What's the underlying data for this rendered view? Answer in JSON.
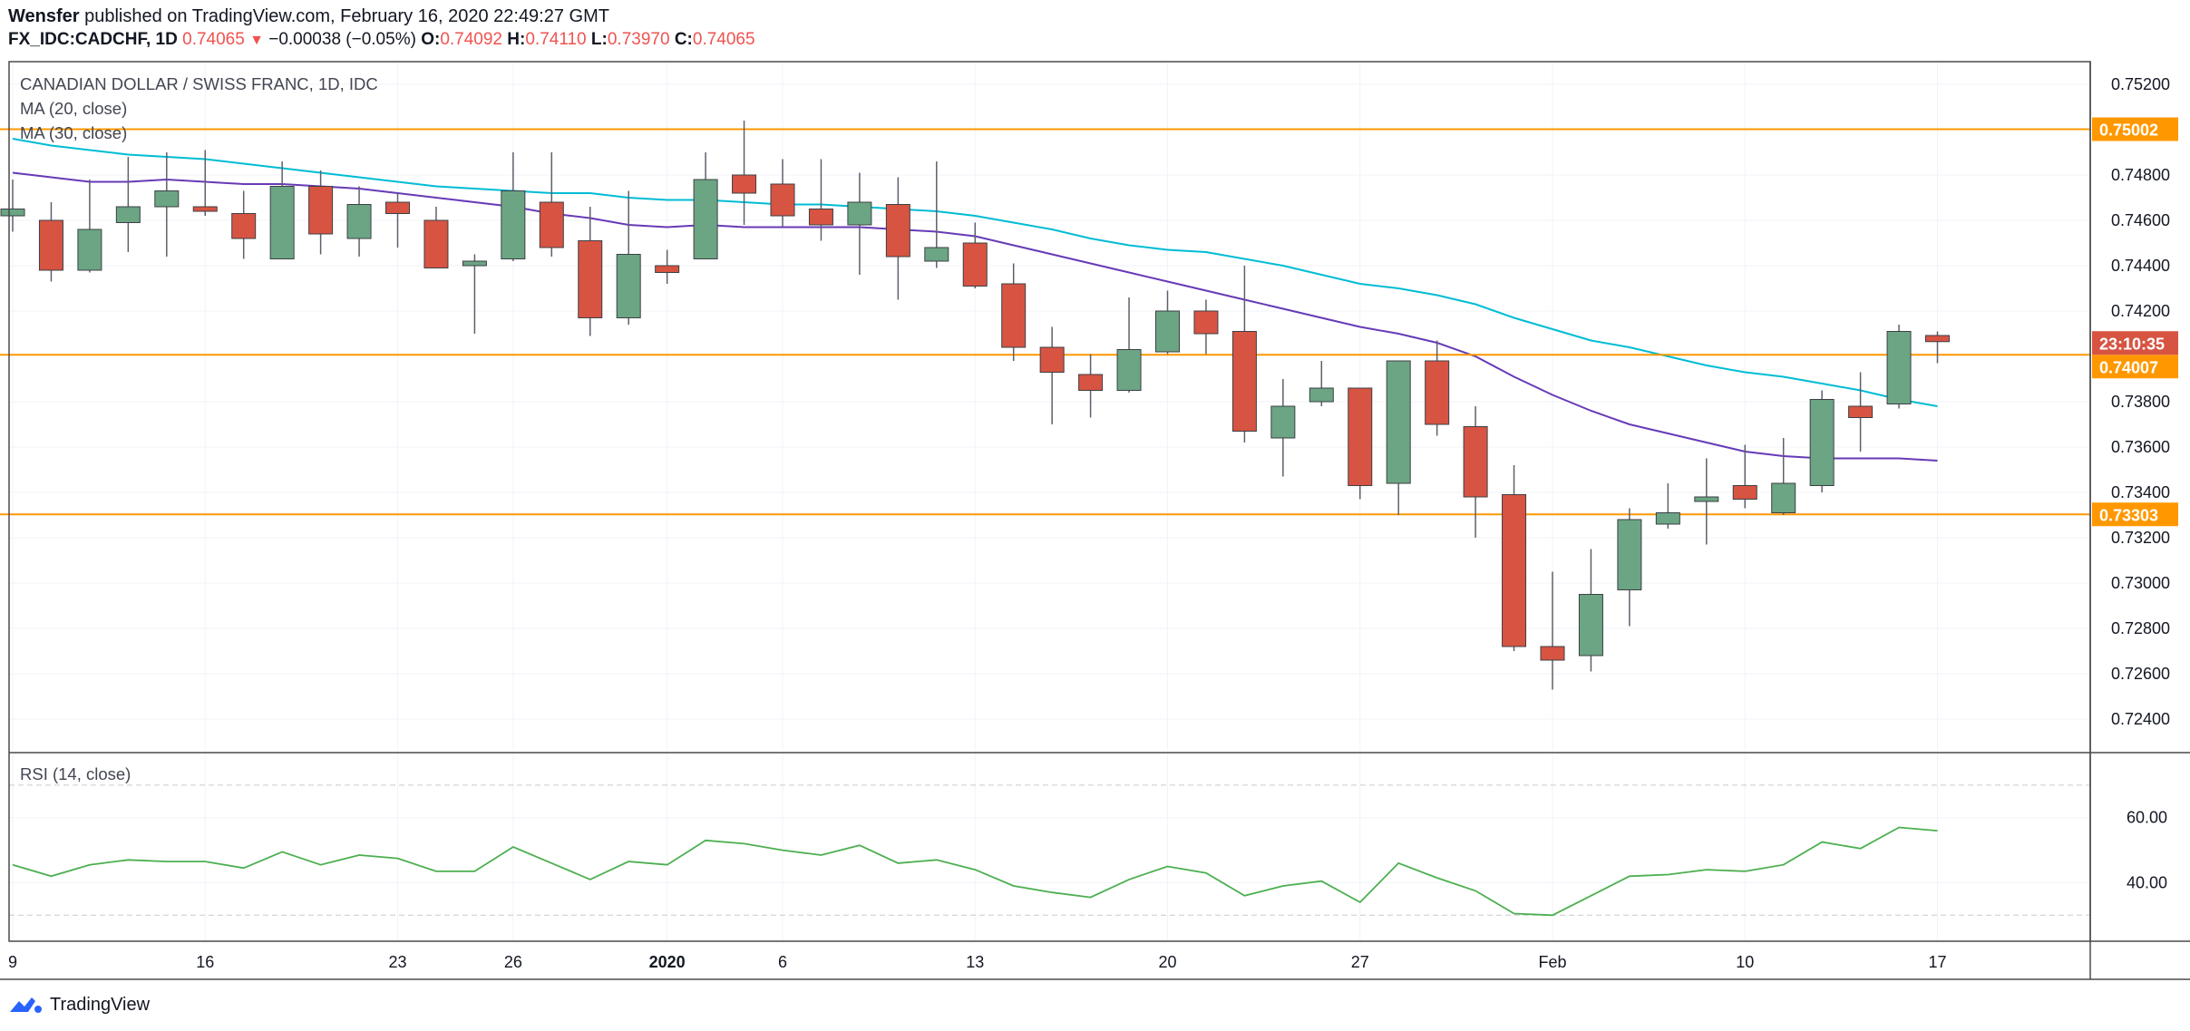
{
  "header": {
    "author": "Wensfer",
    "published_text": "published on TradingView.com, February 16, 2020 22:49:27 GMT",
    "symbol": "FX_IDC:CADCHF, 1D",
    "last": "0.74065",
    "change_arrow": "▼",
    "change": "−0.00038 (−0.05%)",
    "o_label": "O:",
    "o_value": "0.74092",
    "h_label": "H:",
    "h_value": "0.74110",
    "l_label": "L:",
    "l_value": "0.73970",
    "c_label": "C:",
    "c_value": "0.74065"
  },
  "legend": {
    "title": "CANADIAN DOLLAR / SWISS FRANC, 1D, IDC",
    "ma20": "MA (20, close)",
    "ma30": "MA (30, close)",
    "rsi": "RSI (14, close)"
  },
  "footer": {
    "brand": "TradingView"
  },
  "colors": {
    "up": "#6ba583",
    "down": "#d75442",
    "wick": "#5d606b",
    "ma20": "#00bcd4",
    "ma30": "#673ab7",
    "rsi": "#4caf50",
    "hline": "#ff9800",
    "grid": "#f0f3fa"
  },
  "chart_data": {
    "type": "candlestick",
    "title": "CANADIAN DOLLAR / SWISS FRANC, 1D, IDC",
    "ylim": [
      0.7226,
      0.753
    ],
    "price_ticks": [
      "0.75200",
      "0.74800",
      "0.74600",
      "0.74400",
      "0.74200",
      "0.73800",
      "0.73600",
      "0.73400",
      "0.73200",
      "0.73000",
      "0.72800",
      "0.72600",
      "0.72400"
    ],
    "x_ticks": [
      {
        "i": 0,
        "label": "9"
      },
      {
        "i": 5,
        "label": "16"
      },
      {
        "i": 10,
        "label": "23"
      },
      {
        "i": 13,
        "label": "26"
      },
      {
        "i": 17,
        "label": "2020"
      },
      {
        "i": 20,
        "label": "6"
      },
      {
        "i": 25,
        "label": "13"
      },
      {
        "i": 30,
        "label": "20"
      },
      {
        "i": 35,
        "label": "27"
      },
      {
        "i": 40,
        "label": "Feb"
      },
      {
        "i": 45,
        "label": "10"
      },
      {
        "i": 50,
        "label": "17"
      }
    ],
    "horizontal_lines": [
      {
        "price": 0.75002,
        "label": "0.75002"
      },
      {
        "price": 0.74007,
        "label": "0.74007"
      },
      {
        "price": 0.73303,
        "label": "0.73303"
      }
    ],
    "countdown": "23:10:35",
    "candles": [
      {
        "o": 0.7462,
        "h": 0.7478,
        "l": 0.7455,
        "c": 0.7465
      },
      {
        "o": 0.746,
        "h": 0.7468,
        "l": 0.7433,
        "c": 0.7438
      },
      {
        "o": 0.7438,
        "h": 0.7478,
        "l": 0.7437,
        "c": 0.7456
      },
      {
        "o": 0.7459,
        "h": 0.7488,
        "l": 0.7446,
        "c": 0.7466
      },
      {
        "o": 0.7466,
        "h": 0.749,
        "l": 0.7444,
        "c": 0.7473
      },
      {
        "o": 0.7466,
        "h": 0.7491,
        "l": 0.7462,
        "c": 0.7464
      },
      {
        "o": 0.7463,
        "h": 0.7473,
        "l": 0.7443,
        "c": 0.7452
      },
      {
        "o": 0.7443,
        "h": 0.7486,
        "l": 0.7443,
        "c": 0.7475
      },
      {
        "o": 0.7475,
        "h": 0.7482,
        "l": 0.7445,
        "c": 0.7454
      },
      {
        "o": 0.7452,
        "h": 0.7475,
        "l": 0.7444,
        "c": 0.7467
      },
      {
        "o": 0.7468,
        "h": 0.7472,
        "l": 0.7448,
        "c": 0.7463
      },
      {
        "o": 0.746,
        "h": 0.7466,
        "l": 0.744,
        "c": 0.7439
      },
      {
        "o": 0.744,
        "h": 0.7445,
        "l": 0.741,
        "c": 0.7442
      },
      {
        "o": 0.7443,
        "h": 0.749,
        "l": 0.7442,
        "c": 0.7473
      },
      {
        "o": 0.7468,
        "h": 0.749,
        "l": 0.7444,
        "c": 0.7448
      },
      {
        "o": 0.7451,
        "h": 0.7466,
        "l": 0.7409,
        "c": 0.7417
      },
      {
        "o": 0.7417,
        "h": 0.7473,
        "l": 0.7414,
        "c": 0.7445
      },
      {
        "o": 0.744,
        "h": 0.7447,
        "l": 0.7432,
        "c": 0.7437
      },
      {
        "o": 0.7443,
        "h": 0.749,
        "l": 0.7443,
        "c": 0.7478
      },
      {
        "o": 0.748,
        "h": 0.7504,
        "l": 0.7458,
        "c": 0.7472
      },
      {
        "o": 0.7476,
        "h": 0.7487,
        "l": 0.7457,
        "c": 0.7462
      },
      {
        "o": 0.7465,
        "h": 0.7487,
        "l": 0.7451,
        "c": 0.7458
      },
      {
        "o": 0.7458,
        "h": 0.7481,
        "l": 0.7436,
        "c": 0.7468
      },
      {
        "o": 0.7467,
        "h": 0.7479,
        "l": 0.7425,
        "c": 0.7444
      },
      {
        "o": 0.7442,
        "h": 0.7486,
        "l": 0.7439,
        "c": 0.7448
      },
      {
        "o": 0.745,
        "h": 0.7459,
        "l": 0.743,
        "c": 0.7431
      },
      {
        "o": 0.7432,
        "h": 0.7441,
        "l": 0.7398,
        "c": 0.7404
      },
      {
        "o": 0.7404,
        "h": 0.7413,
        "l": 0.737,
        "c": 0.7393
      },
      {
        "o": 0.7392,
        "h": 0.7401,
        "l": 0.7373,
        "c": 0.7385
      },
      {
        "o": 0.7385,
        "h": 0.7426,
        "l": 0.7384,
        "c": 0.7403
      },
      {
        "o": 0.7402,
        "h": 0.7429,
        "l": 0.7401,
        "c": 0.742
      },
      {
        "o": 0.742,
        "h": 0.7425,
        "l": 0.7401,
        "c": 0.741
      },
      {
        "o": 0.7411,
        "h": 0.744,
        "l": 0.7362,
        "c": 0.7367
      },
      {
        "o": 0.7364,
        "h": 0.739,
        "l": 0.7347,
        "c": 0.7378
      },
      {
        "o": 0.738,
        "h": 0.7398,
        "l": 0.7378,
        "c": 0.7386
      },
      {
        "o": 0.7386,
        "h": 0.7386,
        "l": 0.7337,
        "c": 0.7343
      },
      {
        "o": 0.7344,
        "h": 0.7398,
        "l": 0.733,
        "c": 0.7398
      },
      {
        "o": 0.7398,
        "h": 0.7407,
        "l": 0.7365,
        "c": 0.737
      },
      {
        "o": 0.7369,
        "h": 0.7378,
        "l": 0.732,
        "c": 0.7338
      },
      {
        "o": 0.7339,
        "h": 0.7352,
        "l": 0.727,
        "c": 0.7272
      },
      {
        "o": 0.7272,
        "h": 0.7305,
        "l": 0.7253,
        "c": 0.7266
      },
      {
        "o": 0.7268,
        "h": 0.7315,
        "l": 0.7261,
        "c": 0.7295
      },
      {
        "o": 0.7297,
        "h": 0.7333,
        "l": 0.7281,
        "c": 0.7328
      },
      {
        "o": 0.7326,
        "h": 0.7344,
        "l": 0.7324,
        "c": 0.7331
      },
      {
        "o": 0.7336,
        "h": 0.7355,
        "l": 0.7317,
        "c": 0.7338
      },
      {
        "o": 0.7343,
        "h": 0.7361,
        "l": 0.7333,
        "c": 0.7337
      },
      {
        "o": 0.7331,
        "h": 0.7364,
        "l": 0.733,
        "c": 0.7344
      },
      {
        "o": 0.7343,
        "h": 0.7385,
        "l": 0.734,
        "c": 0.7381
      },
      {
        "o": 0.7378,
        "h": 0.7393,
        "l": 0.7358,
        "c": 0.7373
      },
      {
        "o": 0.7379,
        "h": 0.7414,
        "l": 0.7377,
        "c": 0.7411
      },
      {
        "o": 0.74092,
        "h": 0.7411,
        "l": 0.7397,
        "c": 0.74065
      }
    ],
    "ma20": [
      0.7481,
      0.7479,
      0.7477,
      0.7477,
      0.7478,
      0.7477,
      0.7476,
      0.7476,
      0.7475,
      0.7474,
      0.7472,
      0.747,
      0.7468,
      0.7466,
      0.7463,
      0.7461,
      0.7458,
      0.7457,
      0.7458,
      0.7457,
      0.7457,
      0.7457,
      0.7457,
      0.7456,
      0.7455,
      0.7453,
      0.7449,
      0.7445,
      0.7441,
      0.7437,
      0.7433,
      0.7429,
      0.7425,
      0.7421,
      0.7417,
      0.7413,
      0.741,
      0.7406,
      0.74,
      0.7391,
      0.7383,
      0.7376,
      0.737,
      0.7366,
      0.7362,
      0.7358,
      0.7356,
      0.7355,
      0.7355,
      0.7355,
      0.7354
    ],
    "ma30": [
      0.7496,
      0.7493,
      0.7491,
      0.7489,
      0.7488,
      0.7487,
      0.7485,
      0.7483,
      0.7481,
      0.7479,
      0.7477,
      0.7475,
      0.7474,
      0.7473,
      0.7472,
      0.7472,
      0.747,
      0.7469,
      0.7469,
      0.7468,
      0.7467,
      0.7467,
      0.7466,
      0.7465,
      0.7464,
      0.7462,
      0.7459,
      0.7456,
      0.7452,
      0.7449,
      0.7447,
      0.7446,
      0.7443,
      0.744,
      0.7436,
      0.7432,
      0.743,
      0.7427,
      0.7423,
      0.7417,
      0.7412,
      0.7407,
      0.7404,
      0.74,
      0.7396,
      0.7393,
      0.7391,
      0.7388,
      0.7385,
      0.7381,
      0.7378
    ],
    "rsi": {
      "ylim": [
        22,
        80
      ],
      "ticks": [
        "60.00",
        "40.00"
      ],
      "bands": [
        70,
        30
      ],
      "values": [
        45.5,
        42,
        45.5,
        47,
        46.5,
        46.5,
        44.5,
        49.5,
        45.5,
        48.5,
        47.5,
        43.5,
        43.5,
        51,
        46,
        41,
        46.5,
        45.5,
        53,
        52,
        50,
        48.5,
        51.5,
        46,
        47,
        44,
        39,
        37,
        35.5,
        41,
        45,
        43,
        36,
        39,
        40.5,
        34,
        46,
        41.5,
        37.5,
        30.5,
        30,
        36,
        42,
        42.5,
        44,
        43.5,
        45.5,
        52.5,
        50.5,
        57,
        56
      ]
    }
  }
}
